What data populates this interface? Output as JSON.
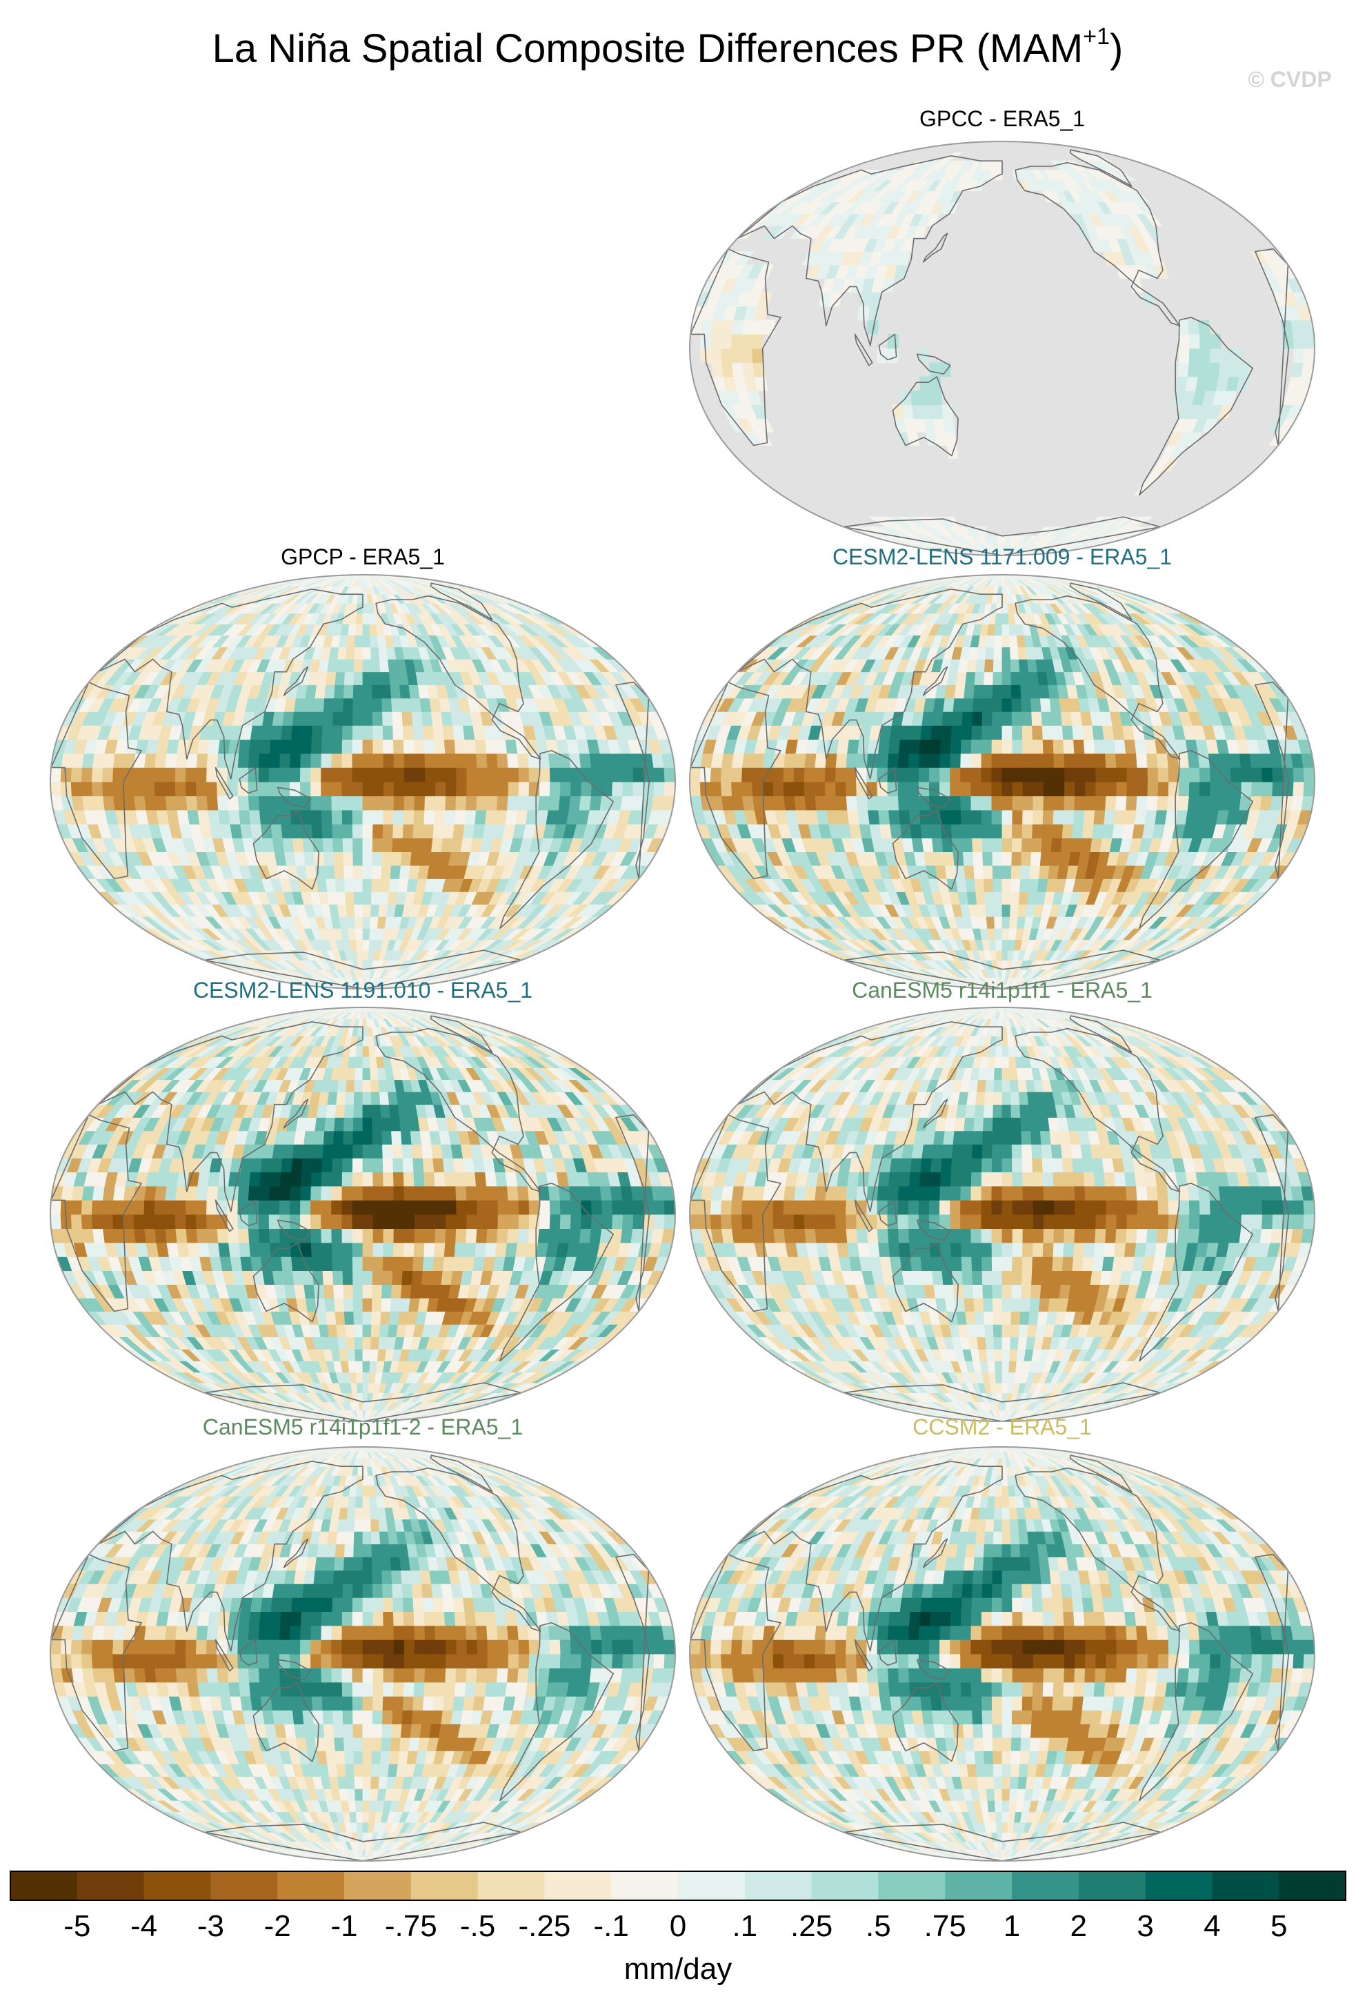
{
  "title": {
    "main": "La Niña Spatial Composite Differences PR (MAM",
    "superscript": "+1",
    "close": ")"
  },
  "watermark": "© CVDP",
  "colors": {
    "land_mask": "#e2e2e2",
    "coast": "#6b6b6b",
    "frame": "#9a9a9a",
    "model_cesm2": "#1f6f80",
    "model_canesm5": "#5b8a5e",
    "model_ccsm2": "#c9bd63",
    "obs": "#000000"
  },
  "panels": [
    {
      "id": "gpcc",
      "label": "GPCC - ERA5_1",
      "label_color": "#000000",
      "land_only": true,
      "amp": 0.6
    },
    {
      "id": "gpcp",
      "label": "GPCP - ERA5_1",
      "label_color": "#000000",
      "land_only": false,
      "amp": 1.05
    },
    {
      "id": "cesm2-1171",
      "label": "CESM2-LENS 1171.009 - ERA5_1",
      "label_color": "#1f6f80",
      "land_only": false,
      "amp": 1.5
    },
    {
      "id": "cesm2-1191",
      "label": "CESM2-LENS 1191.010 - ERA5_1",
      "label_color": "#1f6f80",
      "land_only": false,
      "amp": 1.6
    },
    {
      "id": "canesm5-a",
      "label": "CanESM5 r14i1p1f1 - ERA5_1",
      "label_color": "#5b8a5e",
      "land_only": false,
      "amp": 1.2
    },
    {
      "id": "canesm5-b",
      "label": "CanESM5 r14i1p1f1-2 - ERA5_1",
      "label_color": "#5b8a5e",
      "land_only": false,
      "amp": 1.2
    },
    {
      "id": "ccsm2",
      "label": "CCSM2 - ERA5_1",
      "label_color": "#c9bd63",
      "land_only": false,
      "amp": 1.3
    }
  ],
  "colorbar": {
    "unit": "mm/day",
    "colors": [
      "#543005",
      "#703e0b",
      "#8c510a",
      "#a6661d",
      "#bf8232",
      "#d3a55d",
      "#e6c98a",
      "#f2dfb4",
      "#f7ecd3",
      "#f5f3ec",
      "#e6f2f0",
      "#cfeae6",
      "#b1e0d9",
      "#89cdc1",
      "#5fb3a7",
      "#359489",
      "#1f7e72",
      "#01665e",
      "#004f46",
      "#003c30"
    ],
    "labels": [
      "-5",
      "-4",
      "-3",
      "-2",
      "-1",
      "-.75",
      "-.5",
      "-.25",
      "-.1",
      "0",
      ".1",
      ".25",
      ".5",
      ".75",
      "1",
      "2",
      "3",
      "4",
      "5"
    ]
  }
}
